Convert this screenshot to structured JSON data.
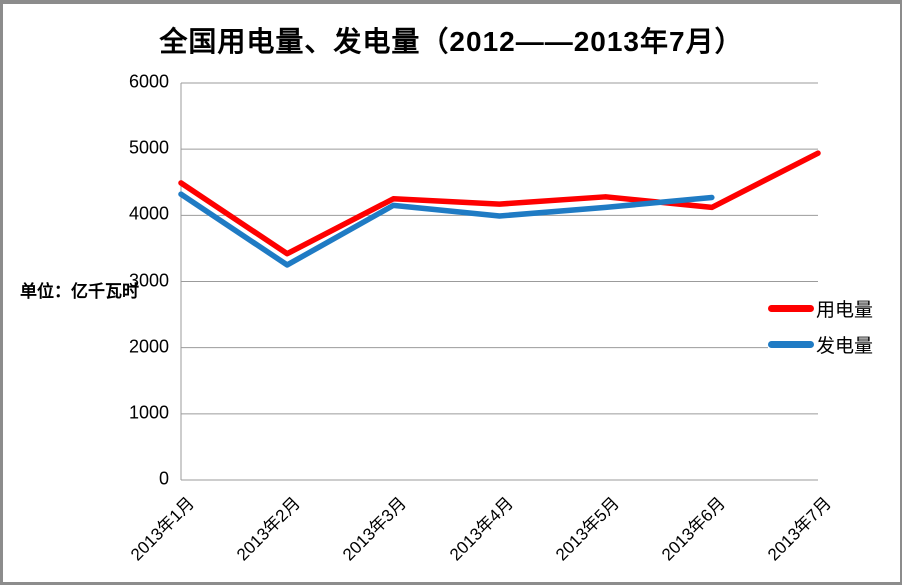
{
  "chart_data": {
    "type": "line",
    "title": "全国用电量、发电量（2012——2013年7月）",
    "unit_label": "单位：亿千瓦时",
    "categories": [
      "2013年1月",
      "2013年2月",
      "2013年3月",
      "2013年4月",
      "2013年5月",
      "2013年6月",
      "2013年7月"
    ],
    "series": [
      {
        "name": "用电量",
        "color": "#fe0000",
        "values": [
          4490,
          3420,
          4250,
          4170,
          4280,
          4120,
          4940
        ]
      },
      {
        "name": "发电量",
        "color": "#1f7bc4",
        "values": [
          4320,
          3250,
          4150,
          3990,
          4120,
          4270,
          null
        ]
      }
    ],
    "ylim": [
      0,
      6000
    ],
    "y_ticks": [
      0,
      1000,
      2000,
      3000,
      4000,
      5000,
      6000
    ],
    "grid": "horizontal",
    "legend_position": "right"
  },
  "colors": {
    "grid": "#9b9b9b",
    "axis": "#9b9b9b",
    "frame_border": "#8c8c8c",
    "background": "#ffffff",
    "text": "#000000"
  }
}
